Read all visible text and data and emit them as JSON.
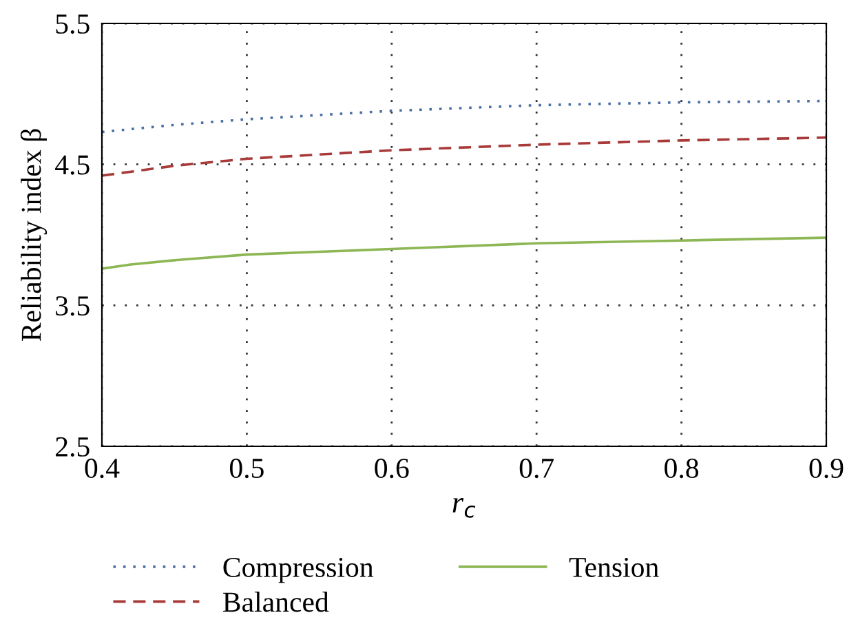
{
  "chart_data": {
    "type": "line",
    "xlabel": "r$_{c}$",
    "ylabel": "Reliability index β",
    "xlim": [
      0.4,
      0.9
    ],
    "ylim": [
      2.5,
      5.5
    ],
    "xticks": [
      0.4,
      0.5,
      0.6,
      0.7,
      0.8,
      0.9
    ],
    "yticks": [
      2.5,
      3.5,
      4.5,
      5.5
    ],
    "grid": true,
    "legend": "bottom",
    "series": [
      {
        "name": "Compression",
        "color": "#4a6fa5",
        "line_style": "dotted",
        "x": [
          0.4,
          0.45,
          0.5,
          0.6,
          0.7,
          0.8,
          0.9
        ],
        "values": [
          4.73,
          4.78,
          4.82,
          4.88,
          4.92,
          4.94,
          4.95
        ]
      },
      {
        "name": "Balanced",
        "color": "#a83a3a",
        "line_style": "dashed",
        "x": [
          0.4,
          0.45,
          0.5,
          0.6,
          0.7,
          0.8,
          0.9
        ],
        "values": [
          4.42,
          4.49,
          4.54,
          4.6,
          4.64,
          4.67,
          4.69
        ]
      },
      {
        "name": "Tension",
        "color": "#8db654",
        "line_style": "solid",
        "x": [
          0.4,
          0.42,
          0.45,
          0.5,
          0.6,
          0.7,
          0.8,
          0.9
        ],
        "values": [
          3.76,
          3.79,
          3.82,
          3.86,
          3.9,
          3.94,
          3.96,
          3.98
        ]
      }
    ]
  }
}
